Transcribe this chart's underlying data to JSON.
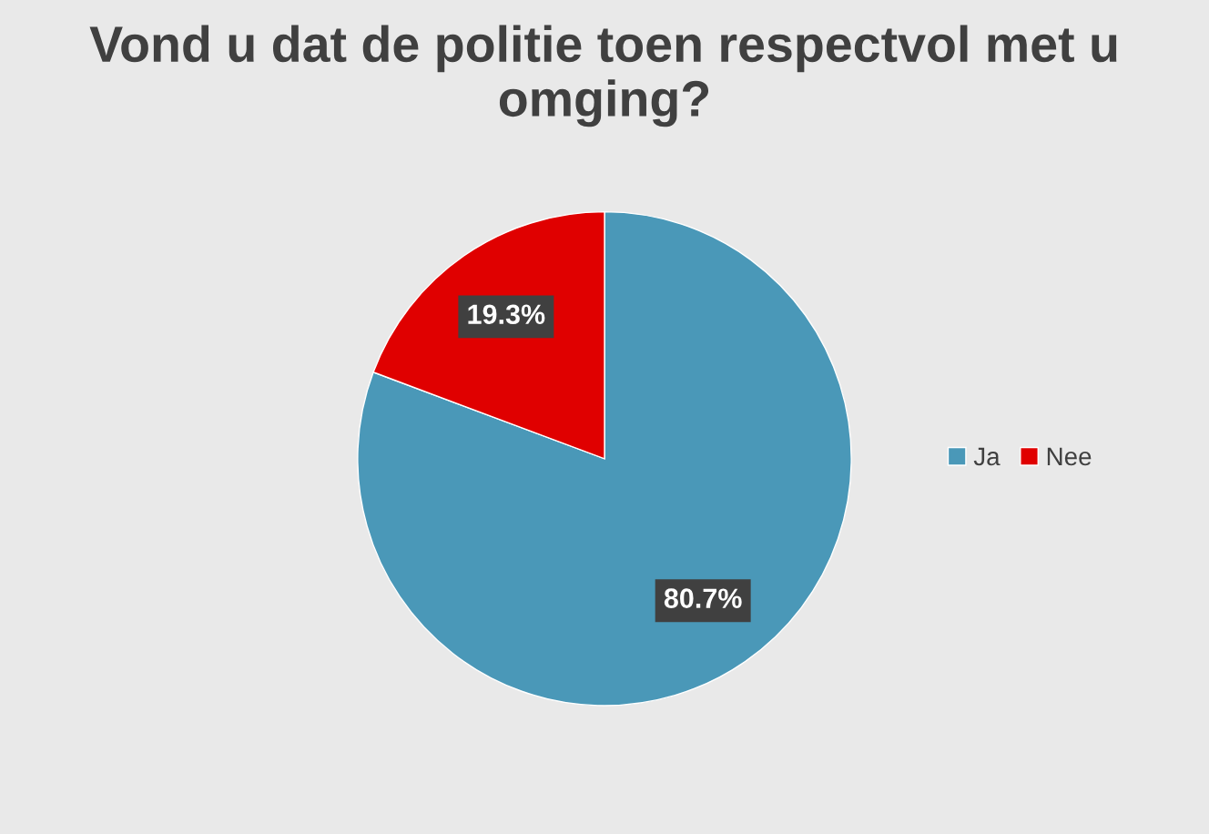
{
  "chart_data": {
    "type": "pie",
    "title": "Vond u dat de politie toen respectvol met u omging?",
    "categories": [
      "Ja",
      "Nee"
    ],
    "values": [
      80.7,
      19.3
    ],
    "colors": [
      "#4a98b8",
      "#e00000"
    ],
    "value_labels": [
      "80.7%",
      "19.3%"
    ],
    "legend": "right"
  }
}
